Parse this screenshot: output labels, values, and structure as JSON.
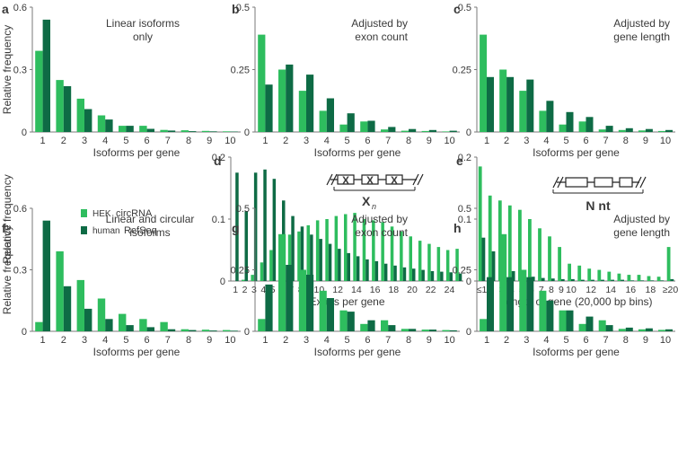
{
  "colors": {
    "hek": "#2ebd5e",
    "refseq": "#0e6b45",
    "axis": "#7a7a7a",
    "text": "#3a3a3a"
  },
  "legend": {
    "hek_prefix": "HEK",
    "hek_label": "circRNA",
    "refseq_prefix": "human",
    "refseq_label": "RefSeq"
  },
  "chart_data": [
    {
      "id": "a",
      "type": "bar",
      "panel_letter": "a",
      "title": "Linear isoforms only",
      "title_lines": [
        "Linear isoforms",
        "only"
      ],
      "ylabel": "Relative frequency",
      "xlabel": "Isoforms per gene",
      "ylim": [
        0,
        0.6
      ],
      "yticks": [
        "0",
        "0.3",
        "0.6"
      ],
      "categories": [
        "1",
        "2",
        "3",
        "4",
        "5",
        "6",
        "7",
        "8",
        "9",
        "10"
      ],
      "series": [
        {
          "name": "HEK circRNA",
          "values": [
            0.39,
            0.25,
            0.16,
            0.08,
            0.03,
            0.03,
            0.01,
            0.008,
            0.005,
            0.003
          ]
        },
        {
          "name": "human RefSeq",
          "values": [
            0.54,
            0.22,
            0.11,
            0.06,
            0.03,
            0.015,
            0.007,
            0.004,
            0.003,
            0.002
          ]
        }
      ]
    },
    {
      "id": "b",
      "type": "bar",
      "panel_letter": "b",
      "title": "Adjusted by exon count",
      "title_lines": [
        "Adjusted by",
        "exon count"
      ],
      "ylabel": "",
      "xlabel": "Isoforms per gene",
      "ylim": [
        0,
        0.5
      ],
      "yticks": [
        "0",
        "0.25",
        "0.5"
      ],
      "categories": [
        "1",
        "2",
        "3",
        "4",
        "5",
        "6",
        "7",
        "8",
        "9",
        "10"
      ],
      "series": [
        {
          "name": "HEK circRNA",
          "values": [
            0.39,
            0.25,
            0.165,
            0.085,
            0.03,
            0.042,
            0.01,
            0.005,
            0.004,
            0.002
          ]
        },
        {
          "name": "human RefSeq",
          "values": [
            0.19,
            0.27,
            0.23,
            0.135,
            0.075,
            0.045,
            0.02,
            0.012,
            0.008,
            0.005
          ]
        }
      ]
    },
    {
      "id": "c",
      "type": "bar",
      "panel_letter": "c",
      "title": "Adjusted by gene length",
      "title_lines": [
        "Adjusted by",
        "gene length"
      ],
      "ylabel": "",
      "xlabel": "Isoforms per gene",
      "ylim": [
        0,
        0.5
      ],
      "yticks": [
        "0",
        "0.25",
        "0.5"
      ],
      "categories": [
        "1",
        "2",
        "3",
        "4",
        "5",
        "6",
        "7",
        "8",
        "9",
        "10"
      ],
      "series": [
        {
          "name": "HEK circRNA",
          "values": [
            0.39,
            0.25,
            0.165,
            0.085,
            0.03,
            0.042,
            0.01,
            0.008,
            0.006,
            0.004
          ]
        },
        {
          "name": "human RefSeq",
          "values": [
            0.22,
            0.22,
            0.21,
            0.125,
            0.08,
            0.06,
            0.025,
            0.015,
            0.012,
            0.008
          ]
        }
      ]
    },
    {
      "id": "d",
      "type": "bar",
      "panel_letter": "d",
      "title": "",
      "ylabel": "Relative frequency",
      "xlabel": "Exons per gene",
      "ylim": [
        0,
        0.2
      ],
      "yticks": [
        "0",
        "0.1",
        "0.2"
      ],
      "categories": [
        "1",
        "2",
        "3",
        "4",
        "5",
        "6",
        "7",
        "8",
        "9",
        "10",
        "11",
        "12",
        "13",
        "14",
        "15",
        "16",
        "17",
        "18",
        "19",
        "20",
        "21",
        "22",
        "23",
        "24",
        "25"
      ],
      "tick_labels": [
        "1",
        "2",
        "3",
        "4",
        "5",
        "6",
        "7",
        "8",
        "10",
        "12",
        "14",
        "16",
        "18",
        "20",
        "22",
        "24"
      ],
      "tick_indices": [
        0,
        1,
        2,
        3,
        4,
        5,
        6,
        7,
        9,
        11,
        13,
        15,
        17,
        19,
        21,
        23
      ],
      "inset_label": "X",
      "inset_sub": "n",
      "inset_glyph": "X",
      "series": [
        {
          "name": "HEK circRNA",
          "values": [
            0,
            0.002,
            0.01,
            0.03,
            0.05,
            0.06,
            0.075,
            0.08,
            0.09,
            0.098,
            0.1,
            0.105,
            0.108,
            0.11,
            0.1,
            0.098,
            0.095,
            0.088,
            0.08,
            0.072,
            0.065,
            0.06,
            0.055,
            0.05,
            0.052
          ]
        },
        {
          "name": "human RefSeq",
          "values": [
            0.175,
            0.113,
            0.175,
            0.18,
            0.165,
            0.13,
            0.105,
            0.088,
            0.075,
            0.068,
            0.06,
            0.052,
            0.045,
            0.04,
            0.035,
            0.032,
            0.028,
            0.025,
            0.022,
            0.02,
            0.018,
            0.016,
            0.015,
            0.014,
            0.012
          ]
        }
      ]
    },
    {
      "id": "e",
      "type": "bar",
      "panel_letter": "e",
      "title": "",
      "ylabel": "",
      "xlabel": "Length of gene (20,000 bp bins)",
      "ylim": [
        0,
        0.2
      ],
      "yticks": [
        "0",
        "0.1",
        "0.2"
      ],
      "categories": [
        "≤1",
        "2",
        "3",
        "4",
        "5",
        "6",
        "7",
        "8",
        "9",
        "10",
        "11",
        "12",
        "13",
        "14",
        "15",
        "16",
        "17",
        "18",
        "19",
        "≥20"
      ],
      "tick_labels": [
        "≤1",
        "2",
        "3",
        "4",
        "5",
        "6",
        "7",
        "8",
        "9",
        "10",
        "12",
        "14",
        "16",
        "18",
        "≥20"
      ],
      "tick_indices": [
        0,
        1,
        2,
        3,
        4,
        5,
        6,
        7,
        8,
        9,
        11,
        13,
        15,
        17,
        19
      ],
      "inset_label": "N nt",
      "series": [
        {
          "name": "HEK circRNA",
          "values": [
            0.185,
            0.138,
            0.13,
            0.122,
            0.115,
            0.1,
            0.085,
            0.072,
            0.055,
            0.028,
            0.025,
            0.02,
            0.018,
            0.015,
            0.012,
            0.01,
            0.01,
            0.008,
            0.007,
            0.055
          ]
        },
        {
          "name": "human RefSeq",
          "values": [
            0.07,
            0.048,
            0.03,
            0.016,
            0.01,
            0.007,
            0.005,
            0.004,
            0.003,
            0.003,
            0.002,
            0.002,
            0.002,
            0.002,
            0.002,
            0.001,
            0.001,
            0.001,
            0.001,
            0.003
          ]
        }
      ]
    },
    {
      "id": "f",
      "type": "bar",
      "panel_letter": "f",
      "title": "Linear and circular isoforms",
      "title_lines": [
        "Linear and circular",
        "isoforms"
      ],
      "ylabel": "Relative frequency",
      "xlabel": "Isoforms per gene",
      "ylim": [
        0,
        0.6
      ],
      "yticks": [
        "0",
        "0.3",
        "0.6"
      ],
      "categories": [
        "1",
        "2",
        "3",
        "4",
        "5",
        "6",
        "7",
        "8",
        "9",
        "10"
      ],
      "series": [
        {
          "name": "HEK circRNA",
          "values": [
            0.045,
            0.39,
            0.25,
            0.16,
            0.085,
            0.06,
            0.045,
            0.01,
            0.008,
            0.006
          ]
        },
        {
          "name": "human RefSeq",
          "values": [
            0.54,
            0.22,
            0.11,
            0.06,
            0.03,
            0.02,
            0.01,
            0.006,
            0.004,
            0.003
          ]
        }
      ]
    },
    {
      "id": "g",
      "type": "bar",
      "panel_letter": "g",
      "title": "Adjusted by exon count",
      "title_lines": [
        "Adjusted by",
        "exon count"
      ],
      "ylabel": "",
      "xlabel": "Isoforms per gene",
      "ylim": [
        0,
        0.5
      ],
      "yticks": [
        "0",
        "0.25",
        "0.5"
      ],
      "categories": [
        "1",
        "2",
        "3",
        "4",
        "5",
        "6",
        "7",
        "8",
        "9",
        "10"
      ],
      "series": [
        {
          "name": "HEK circRNA",
          "values": [
            0.05,
            0.395,
            0.25,
            0.165,
            0.085,
            0.03,
            0.045,
            0.01,
            0.007,
            0.005
          ]
        },
        {
          "name": "human RefSeq",
          "values": [
            0.19,
            0.27,
            0.23,
            0.135,
            0.08,
            0.045,
            0.025,
            0.01,
            0.007,
            0.004
          ]
        }
      ]
    },
    {
      "id": "h",
      "type": "bar",
      "panel_letter": "h",
      "title": "Adjusted by gene length",
      "title_lines": [
        "Adjusted by",
        "gene length"
      ],
      "ylabel": "",
      "xlabel": "Isoforms per gene",
      "ylim": [
        0,
        0.5
      ],
      "yticks": [
        "0",
        "0.25",
        "0.5"
      ],
      "categories": [
        "1",
        "2",
        "3",
        "4",
        "5",
        "6",
        "7",
        "8",
        "9",
        "10"
      ],
      "series": [
        {
          "name": "HEK circRNA",
          "values": [
            0.05,
            0.395,
            0.25,
            0.165,
            0.085,
            0.03,
            0.045,
            0.01,
            0.008,
            0.006
          ]
        },
        {
          "name": "human RefSeq",
          "values": [
            0.22,
            0.22,
            0.22,
            0.125,
            0.085,
            0.06,
            0.025,
            0.015,
            0.012,
            0.008
          ]
        }
      ]
    }
  ]
}
